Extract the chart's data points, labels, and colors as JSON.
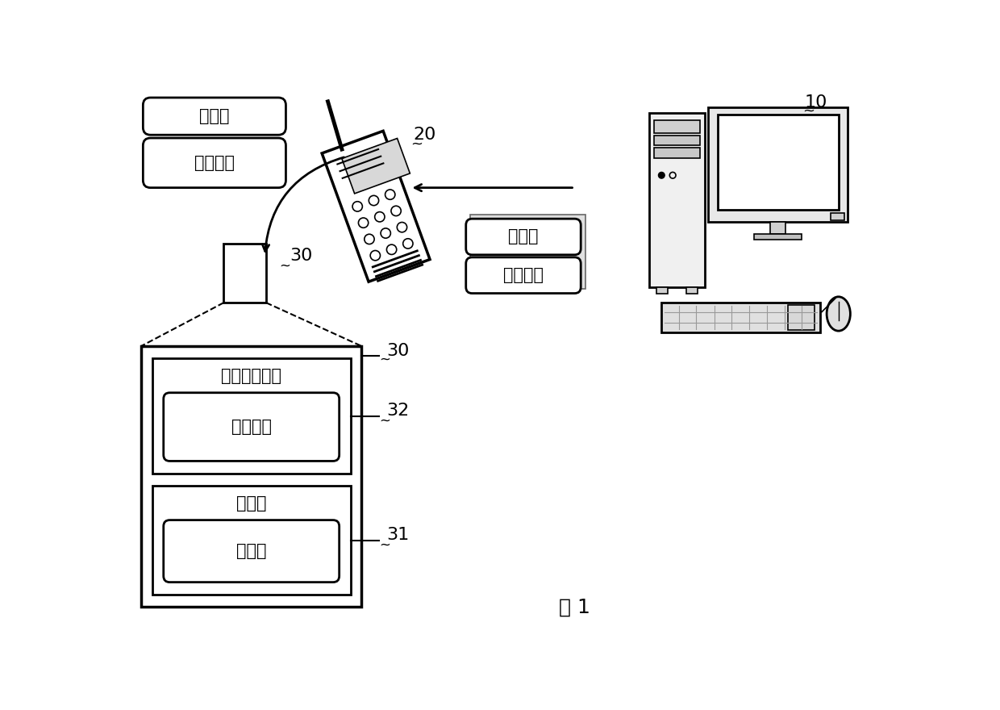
{
  "bg_color": "#ffffff",
  "text_color": "#000000",
  "line_color": "#000000",
  "label_10": "10",
  "label_20": "20",
  "label_30_top": "30",
  "label_30_big": "30",
  "label_31": "31",
  "label_32": "32",
  "fig_label": "图 1",
  "text_zhenshu": "真数据",
  "text_jianyan": "检验信息",
  "text_cunchu_controller": "存储器控制器",
  "text_cunchu": "存储器",
  "font_size_label": 16,
  "font_size_text": 15,
  "font_size_fig": 18
}
